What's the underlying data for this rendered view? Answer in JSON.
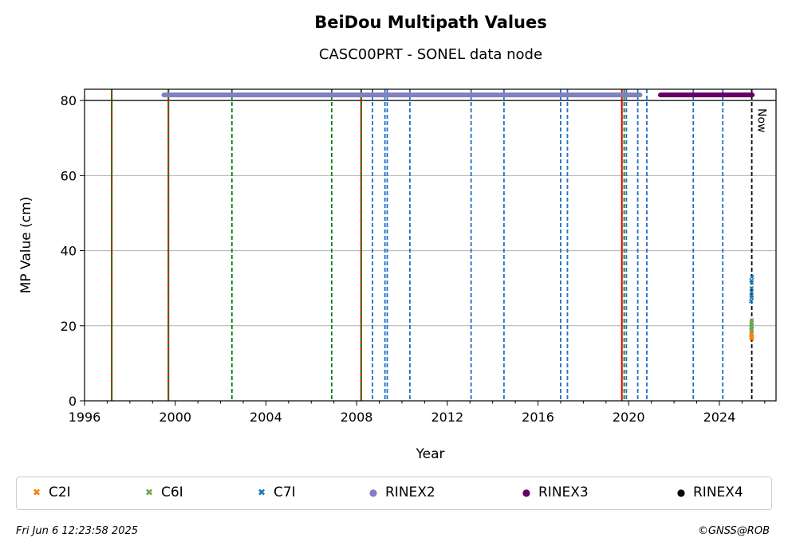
{
  "chart_data": {
    "type": "scatter",
    "title": "BeiDou Multipath Values",
    "subtitle": "CASC00PRT - SONEL data node",
    "xlabel": "Year",
    "ylabel": "MP Value (cm)",
    "xlim": [
      1996,
      2026.5
    ],
    "ylim": [
      0,
      83
    ],
    "x_ticks": [
      "1996",
      "2000",
      "2004",
      "2008",
      "2012",
      "2016",
      "2020",
      "2024"
    ],
    "y_ticks": [
      "0",
      "20",
      "40",
      "60",
      "80"
    ],
    "grid": "horizontal",
    "reference_line_y": 80,
    "now_label": "Now",
    "now_year": 2025.43,
    "series": [
      {
        "name": "C2I",
        "marker": "x",
        "color": "#ff7f0e",
        "points": [
          [
            2025.4,
            17.0
          ],
          [
            2025.41,
            17.5
          ],
          [
            2025.42,
            18.0
          ],
          [
            2025.43,
            16.8
          ],
          [
            2025.44,
            17.2
          ],
          [
            2025.42,
            17.8
          ],
          [
            2025.43,
            16.5
          ]
        ]
      },
      {
        "name": "C6I",
        "marker": "x",
        "color": "#6aa84f",
        "points": [
          [
            2025.4,
            19.5
          ],
          [
            2025.41,
            20.5
          ],
          [
            2025.42,
            21.0
          ],
          [
            2025.43,
            19.0
          ],
          [
            2025.44,
            20.0
          ],
          [
            2025.42,
            18.5
          ],
          [
            2025.43,
            21.5
          ]
        ]
      },
      {
        "name": "C7I",
        "marker": "x",
        "color": "#1f77b4",
        "points": [
          [
            2025.4,
            26.5
          ],
          [
            2025.41,
            28.0
          ],
          [
            2025.42,
            30.0
          ],
          [
            2025.43,
            31.5
          ],
          [
            2025.44,
            33.0
          ],
          [
            2025.42,
            29.0
          ],
          [
            2025.43,
            27.5
          ],
          [
            2025.41,
            32.0
          ]
        ]
      }
    ],
    "availability": [
      {
        "name": "RINEX2",
        "color": "#8080c0",
        "start": 1999.5,
        "end": 2020.5,
        "y": 81.5
      },
      {
        "name": "RINEX3",
        "color": "#660066",
        "start": 2021.4,
        "end": 2025.45,
        "y": 81.5
      },
      {
        "name": "RINEX4",
        "color": "#000000",
        "start": null,
        "end": null,
        "y": 81.5
      }
    ],
    "green_lines": [
      1997.2,
      1999.7,
      2002.5,
      2006.9,
      2008.2,
      2019.8
    ],
    "red_lines": [
      1997.2,
      1999.7,
      2008.2,
      2019.7
    ],
    "blue_lines": [
      2008.7,
      2009.25,
      2009.35,
      2010.35,
      2013.05,
      2014.5,
      2017.0,
      2017.3,
      2019.9,
      2020.4,
      2020.8,
      2022.85,
      2024.15
    ],
    "legend": [
      "C2I",
      "C6I",
      "C7I",
      "RINEX2",
      "RINEX3",
      "RINEX4"
    ],
    "legend_position": "bottom"
  },
  "footer": {
    "timestamp": "Fri Jun  6 12:23:58 2025",
    "credit": "©GNSS@ROB"
  }
}
